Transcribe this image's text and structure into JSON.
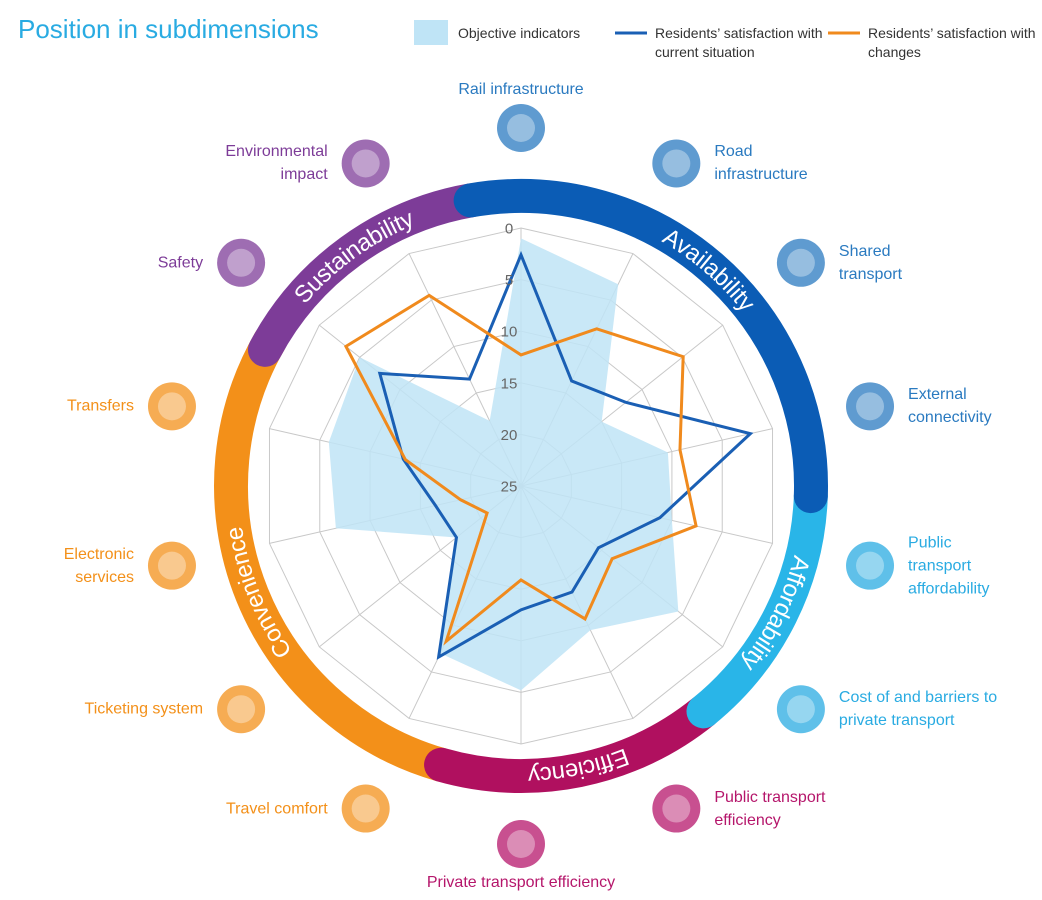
{
  "chart_data": {
    "type": "radar",
    "title": "Position in subdimensions",
    "categories": [
      "Rail infrastructure",
      "Road infrastructure",
      "Shared transport",
      "External connectivity",
      "Public transport affordability",
      "Cost of and barriers to private transport",
      "Public transport efficiency",
      "Private transport efficiency",
      "Travel comfort",
      "Ticketing system",
      "Electronic services",
      "Transfers",
      "Safety",
      "Environmental impact"
    ],
    "category_colors": [
      "#2a7ac0",
      "#2a7ac0",
      "#2a7ac0",
      "#2a7ac0",
      "#29abe2",
      "#29abe2",
      "#b5166b",
      "#b5166b",
      "#f39019",
      "#f39019",
      "#f39019",
      "#f39019",
      "#7d3c98",
      "#7d3c98"
    ],
    "sections": [
      {
        "name": "Sustainability",
        "color": "#7d3c98"
      },
      {
        "name": "Availability",
        "color": "#0b5cb5"
      },
      {
        "name": "Affordability",
        "color": "#29b5e8"
      },
      {
        "name": "Efficiency",
        "color": "#b0105f"
      },
      {
        "name": "Convenience",
        "color": "#f39019"
      }
    ],
    "series": [
      {
        "name": "Objective indicators",
        "color": "#bfe4f6",
        "style": "area",
        "values": [
          1,
          3.3,
          15,
          10.4,
          10,
          5.5,
          9.5,
          5.2,
          7,
          17,
          6.6,
          5.9,
          5,
          18
        ]
      },
      {
        "name": "Residents’ satisfaction with current situation",
        "color": "#1a5fb4",
        "style": "line",
        "values": [
          2.6,
          13.7,
          12,
          2.2,
          11.2,
          15.4,
          13.6,
          13,
          6.6,
          17,
          16.5,
          13.3,
          7.5,
          13.5
        ]
      },
      {
        "name": "Residents’ satisfaction with changes",
        "color": "#f08a1d",
        "style": "line",
        "values": [
          12.3,
          8.1,
          4.9,
          9.2,
          7.6,
          13.7,
          10.7,
          15.9,
          8.3,
          20.8,
          19,
          13.5,
          3.3,
          4.5
        ]
      }
    ],
    "rlim": [
      25,
      0
    ],
    "rticks": [
      0,
      5,
      10,
      15,
      20,
      25
    ],
    "grid": true
  }
}
